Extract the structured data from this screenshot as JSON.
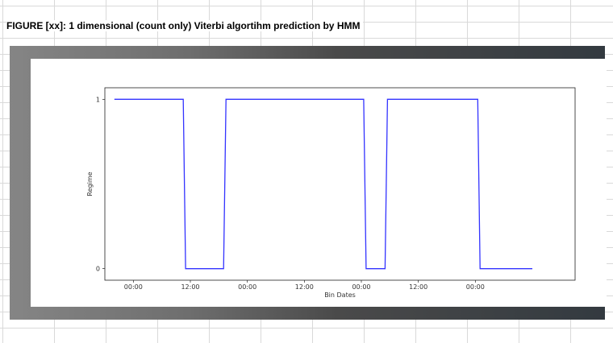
{
  "caption": "FIGURE [xx]: 1 dimensional (count only) Viterbi algortihm prediction by HMM",
  "chart_data": {
    "type": "line",
    "title": "",
    "xlabel": "Bin Dates",
    "ylabel": "Regime",
    "x_tick_labels": [
      "00:00",
      "12:00",
      "00:00",
      "12:00",
      "00:00",
      "12:00",
      "00:00"
    ],
    "y_tick_labels": [
      "0",
      "1"
    ],
    "xlim_hours": [
      -6,
      93
    ],
    "ylim": [
      0,
      1
    ],
    "grid": false,
    "line_color": "#3333ff",
    "series": [
      {
        "x_hours": [
          -4,
          10.5,
          11,
          19,
          19.5,
          48.5,
          49,
          53,
          53.5,
          72.5,
          73,
          84
        ],
        "values": [
          1,
          1,
          0,
          0,
          1,
          1,
          0,
          0,
          1,
          1,
          0,
          0
        ]
      }
    ]
  }
}
